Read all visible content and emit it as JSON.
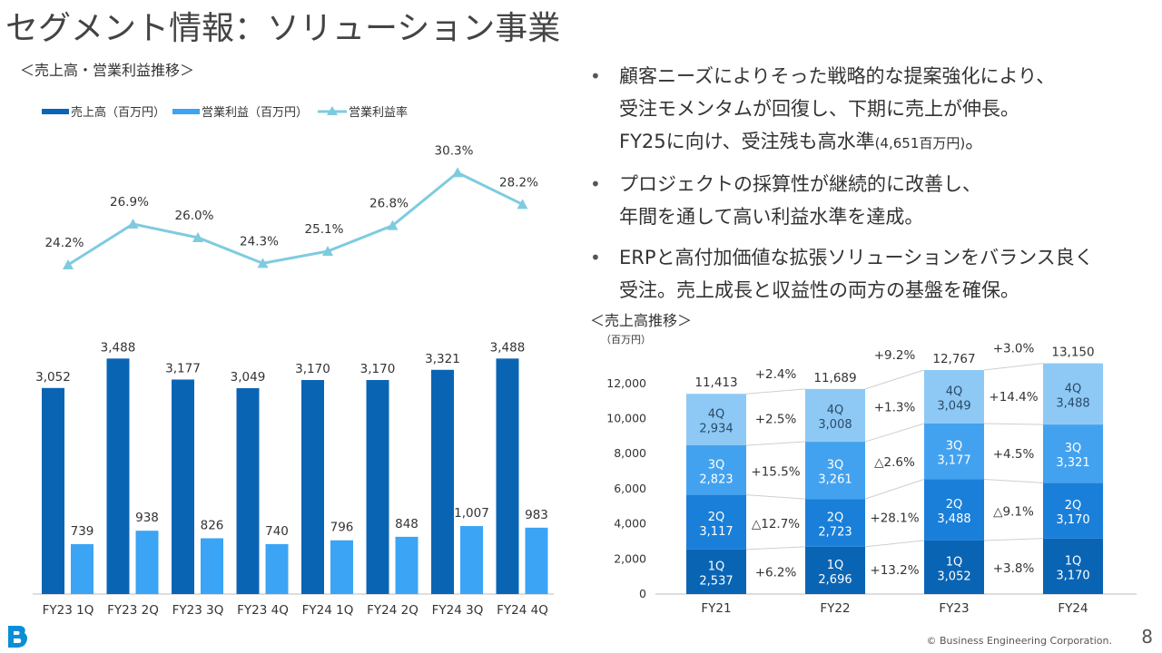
{
  "page": {
    "title": "セグメント情報：ソリューション事業",
    "left_section_label": "＜売上高・営業利益推移＞",
    "right_section_label": "＜売上高推移＞",
    "copyright": "© Business Engineering Corporation.",
    "page_number": "8"
  },
  "bullets": [
    {
      "lines": [
        "顧客ニーズによりそった戦略的な提案強化により、",
        "受注モメンタムが回復し、下期に売上が伸長。"
      ],
      "last_line_main": "FY25に向け、受注残も高水準",
      "last_line_small": "(4,651百万円)",
      "last_line_tail": "。"
    },
    {
      "lines": [
        "プロジェクトの採算性が継続的に改善し、",
        "年間を通して高い利益水準を達成。"
      ]
    },
    {
      "lines": [
        "ERPと高付加価値な拡張ソリューションをバランス良く",
        "受注。売上成長と収益性の両方の基盤を確保。"
      ]
    }
  ],
  "colors": {
    "bar_dark": "#0a64b4",
    "bar_light": "#3ba4f5",
    "line": "#7ecbe0",
    "q1": "#0a64b4",
    "q2": "#1a7fd9",
    "q3": "#43a2ef",
    "q4": "#8ec9f5"
  },
  "chart_data": [
    {
      "type": "bar",
      "title": "",
      "legend": [
        "売上高（百万円）",
        "営業利益（百万円）",
        "営業利益率"
      ],
      "categories": [
        "FY23 1Q",
        "FY23 2Q",
        "FY23 3Q",
        "FY23 4Q",
        "FY24 1Q",
        "FY24 2Q",
        "FY24 3Q",
        "FY24 4Q"
      ],
      "series": [
        {
          "name": "売上高（百万円）",
          "values": [
            3052,
            3488,
            3177,
            3049,
            3170,
            3170,
            3321,
            3488
          ],
          "labels": [
            "3,052",
            "3,488",
            "3,177",
            "3,049",
            "3,170",
            "3,170",
            "3,321",
            "3,488"
          ]
        },
        {
          "name": "営業利益（百万円）",
          "values": [
            739,
            938,
            826,
            740,
            796,
            848,
            1007,
            983
          ],
          "labels": [
            "739",
            "938",
            "826",
            "740",
            "796",
            "848",
            "1,007",
            "983"
          ]
        },
        {
          "name": "営業利益率",
          "values": [
            24.2,
            26.9,
            26.0,
            24.3,
            25.1,
            26.8,
            30.3,
            28.2
          ],
          "labels": [
            "24.2%",
            "26.9%",
            "26.0%",
            "24.3%",
            "25.1%",
            "26.8%",
            "30.3%",
            "28.2%"
          ]
        }
      ],
      "ylim": [
        0,
        3600
      ],
      "rate_ylim": [
        20,
        32
      ]
    },
    {
      "type": "bar",
      "stacked": true,
      "unit_label": "（百万円）",
      "categories": [
        "FY21",
        "FY22",
        "FY23",
        "FY24"
      ],
      "yticks": [
        0,
        2000,
        4000,
        6000,
        8000,
        10000,
        12000
      ],
      "ytick_labels": [
        "0",
        "2,000",
        "4,000",
        "6,000",
        "8,000",
        "10,000",
        "12,000"
      ],
      "ylim": [
        0,
        13800
      ],
      "series": [
        {
          "name": "1Q",
          "values": [
            2537,
            2696,
            3052,
            3170
          ],
          "labels": [
            "2,537",
            "2,696",
            "3,052",
            "3,170"
          ]
        },
        {
          "name": "2Q",
          "values": [
            3117,
            2723,
            3488,
            3170
          ],
          "labels": [
            "3,117",
            "2,723",
            "3,488",
            "3,170"
          ]
        },
        {
          "name": "3Q",
          "values": [
            2823,
            3261,
            3177,
            3321
          ],
          "labels": [
            "2,823",
            "3,261",
            "3,177",
            "3,321"
          ]
        },
        {
          "name": "4Q",
          "values": [
            2934,
            3008,
            3049,
            3488
          ],
          "labels": [
            "2,934",
            "3,008",
            "3,049",
            "3,488"
          ]
        }
      ],
      "totals": [
        11413,
        11689,
        12767,
        13150
      ],
      "total_labels": [
        "11,413",
        "11,689",
        "12,767",
        "13,150"
      ],
      "growth_labels": [
        [
          "+6.2%",
          "△12.7%",
          "+15.5%",
          "+2.5%",
          "+2.4%"
        ],
        [
          "+13.2%",
          "+28.1%",
          "△2.6%",
          "+1.3%",
          "+9.2%"
        ],
        [
          "+3.8%",
          "△9.1%",
          "+4.5%",
          "+14.4%",
          "+3.0%"
        ]
      ]
    }
  ]
}
